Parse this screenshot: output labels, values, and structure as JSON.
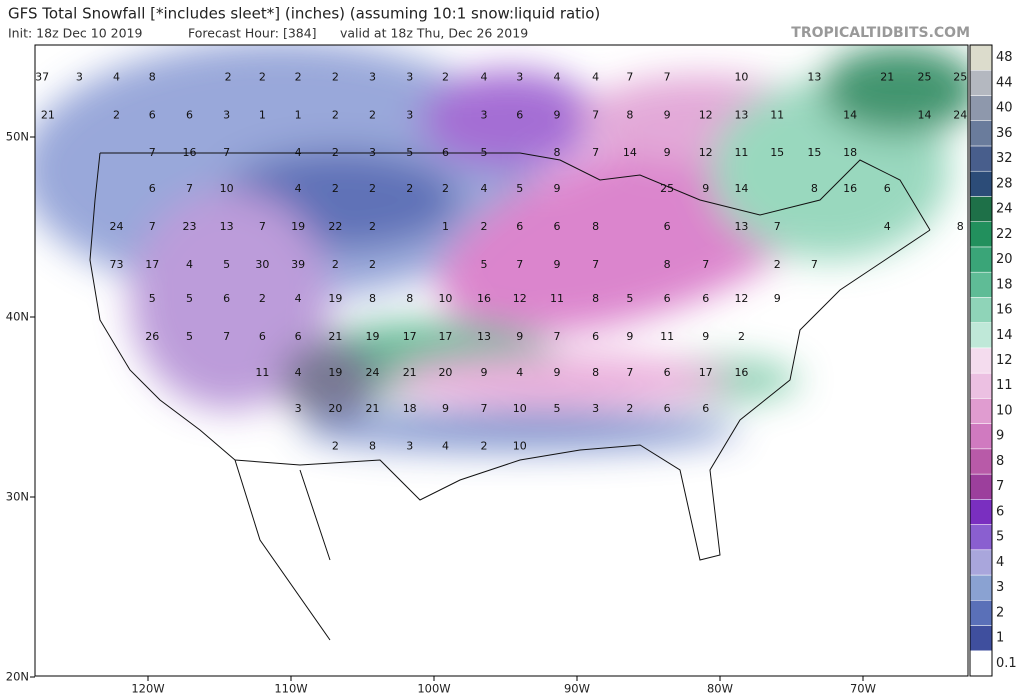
{
  "header": {
    "title": "GFS Total Snowfall [*includes sleet*] (inches) (assuming 10:1 snow:liquid ratio)",
    "init": "Init: 18z Dec 10 2019",
    "forecast_hour": "Forecast Hour: [384]",
    "valid": "valid at 18z Thu, Dec 26 2019",
    "watermark": "TROPICALTIDBITS.COM"
  },
  "map": {
    "lon_ticks": [
      {
        "value": -120,
        "label": "120W"
      },
      {
        "value": -110,
        "label": "110W"
      },
      {
        "value": -100,
        "label": "100W"
      },
      {
        "value": -90,
        "label": "90W"
      },
      {
        "value": -80,
        "label": "80W"
      },
      {
        "value": -70,
        "label": "70W"
      }
    ],
    "lat_ticks": [
      {
        "value": 50,
        "label": "50N"
      },
      {
        "value": 40,
        "label": "40N"
      },
      {
        "value": 30,
        "label": "30N"
      },
      {
        "value": 20,
        "label": "20N"
      }
    ],
    "value_rows": [
      {
        "lat": 53.3,
        "points": [
          [
            37,
            -127.4
          ],
          [
            3,
            -124.8
          ],
          [
            4,
            -122.2
          ],
          [
            8,
            -119.7
          ],
          [
            2,
            -114.4
          ],
          [
            2,
            -112.0
          ],
          [
            2,
            -109.5
          ],
          [
            2,
            -106.9
          ],
          [
            3,
            -104.3
          ],
          [
            3,
            -101.7
          ],
          [
            2,
            -99.2
          ],
          [
            4,
            -96.5
          ],
          [
            3,
            -94.0
          ],
          [
            4,
            -91.4
          ],
          [
            4,
            -88.7
          ],
          [
            7,
            -86.3
          ],
          [
            7,
            -83.7
          ],
          [
            10,
            -78.5
          ],
          [
            13,
            -73.4
          ],
          [
            21,
            -68.3
          ],
          [
            25,
            -65.7
          ],
          [
            25,
            -63.2
          ]
        ]
      },
      {
        "lat": 51.2,
        "points": [
          [
            21,
            -127.0
          ],
          [
            2,
            -122.2
          ],
          [
            6,
            -119.7
          ],
          [
            6,
            -117.1
          ],
          [
            3,
            -114.5
          ],
          [
            1,
            -112.0
          ],
          [
            1,
            -109.5
          ],
          [
            2,
            -106.9
          ],
          [
            2,
            -104.3
          ],
          [
            3,
            -101.7
          ],
          [
            3,
            -96.5
          ],
          [
            6,
            -94.0
          ],
          [
            9,
            -91.4
          ],
          [
            7,
            -88.7
          ],
          [
            8,
            -86.3
          ],
          [
            9,
            -83.7
          ],
          [
            12,
            -81.0
          ],
          [
            13,
            -78.5
          ],
          [
            11,
            -76.0
          ],
          [
            14,
            -70.9
          ],
          [
            14,
            -65.7
          ],
          [
            24,
            -63.2
          ]
        ]
      },
      {
        "lat": 49.1,
        "points": [
          [
            7,
            -119.7
          ],
          [
            16,
            -117.1
          ],
          [
            7,
            -114.5
          ],
          [
            4,
            -109.5
          ],
          [
            2,
            -106.9
          ],
          [
            3,
            -104.3
          ],
          [
            5,
            -101.7
          ],
          [
            6,
            -99.2
          ],
          [
            5,
            -96.5
          ],
          [
            8,
            -91.4
          ],
          [
            7,
            -88.7
          ],
          [
            14,
            -86.3
          ],
          [
            9,
            -83.7
          ],
          [
            12,
            -81.0
          ],
          [
            11,
            -78.5
          ],
          [
            15,
            -76.0
          ],
          [
            15,
            -73.4
          ],
          [
            18,
            -70.9
          ]
        ]
      },
      {
        "lat": 47.1,
        "points": [
          [
            6,
            -119.7
          ],
          [
            7,
            -117.1
          ],
          [
            10,
            -114.5
          ],
          [
            4,
            -109.5
          ],
          [
            2,
            -106.9
          ],
          [
            2,
            -104.3
          ],
          [
            2,
            -101.7
          ],
          [
            2,
            -99.2
          ],
          [
            4,
            -96.5
          ],
          [
            5,
            -94.0
          ],
          [
            9,
            -91.4
          ],
          [
            25,
            -83.7
          ],
          [
            9,
            -81.0
          ],
          [
            14,
            -78.5
          ],
          [
            8,
            -73.4
          ],
          [
            16,
            -70.9
          ],
          [
            6,
            -68.3
          ]
        ]
      },
      {
        "lat": 45.0,
        "points": [
          [
            24,
            -122.2
          ],
          [
            7,
            -119.7
          ],
          [
            23,
            -117.1
          ],
          [
            13,
            -114.5
          ],
          [
            7,
            -112.0
          ],
          [
            19,
            -109.5
          ],
          [
            22,
            -106.9
          ],
          [
            2,
            -104.3
          ],
          [
            1,
            -99.2
          ],
          [
            2,
            -96.5
          ],
          [
            6,
            -94.0
          ],
          [
            6,
            -91.4
          ],
          [
            8,
            -88.7
          ],
          [
            6,
            -83.7
          ],
          [
            13,
            -78.5
          ],
          [
            7,
            -76.0
          ],
          [
            4,
            -68.3
          ],
          [
            8,
            -63.2
          ]
        ]
      },
      {
        "lat": 42.9,
        "points": [
          [
            73,
            -122.2
          ],
          [
            17,
            -119.7
          ],
          [
            4,
            -117.1
          ],
          [
            5,
            -114.5
          ],
          [
            30,
            -112.0
          ],
          [
            39,
            -109.5
          ],
          [
            2,
            -106.9
          ],
          [
            2,
            -104.3
          ],
          [
            5,
            -96.5
          ],
          [
            7,
            -94.0
          ],
          [
            9,
            -91.4
          ],
          [
            7,
            -88.7
          ],
          [
            8,
            -83.7
          ],
          [
            7,
            -81.0
          ],
          [
            2,
            -76.0
          ],
          [
            7,
            -73.4
          ]
        ]
      },
      {
        "lat": 41.0,
        "points": [
          [
            5,
            -119.7
          ],
          [
            5,
            -117.1
          ],
          [
            6,
            -114.5
          ],
          [
            2,
            -112.0
          ],
          [
            4,
            -109.5
          ],
          [
            19,
            -106.9
          ],
          [
            8,
            -104.3
          ],
          [
            8,
            -101.7
          ],
          [
            10,
            -99.2
          ],
          [
            16,
            -96.5
          ],
          [
            12,
            -94.0
          ],
          [
            11,
            -91.4
          ],
          [
            8,
            -88.7
          ],
          [
            5,
            -86.3
          ],
          [
            6,
            -83.7
          ],
          [
            6,
            -81.0
          ],
          [
            12,
            -78.5
          ],
          [
            9,
            -76.0
          ]
        ]
      },
      {
        "lat": 38.9,
        "points": [
          [
            26,
            -119.7
          ],
          [
            5,
            -117.1
          ],
          [
            7,
            -114.5
          ],
          [
            6,
            -112.0
          ],
          [
            6,
            -109.5
          ],
          [
            21,
            -106.9
          ],
          [
            19,
            -104.3
          ],
          [
            17,
            -101.7
          ],
          [
            17,
            -99.2
          ],
          [
            13,
            -96.5
          ],
          [
            9,
            -94.0
          ],
          [
            7,
            -91.4
          ],
          [
            6,
            -88.7
          ],
          [
            9,
            -86.3
          ],
          [
            11,
            -83.7
          ],
          [
            9,
            -81.0
          ],
          [
            2,
            -78.5
          ]
        ]
      },
      {
        "lat": 36.9,
        "points": [
          [
            11,
            -112.0
          ],
          [
            4,
            -109.5
          ],
          [
            19,
            -106.9
          ],
          [
            24,
            -104.3
          ],
          [
            21,
            -101.7
          ],
          [
            20,
            -99.2
          ],
          [
            9,
            -96.5
          ],
          [
            4,
            -94.0
          ],
          [
            9,
            -91.4
          ],
          [
            8,
            -88.7
          ],
          [
            7,
            -86.3
          ],
          [
            6,
            -83.7
          ],
          [
            17,
            -81.0
          ],
          [
            16,
            -78.5
          ]
        ]
      },
      {
        "lat": 34.9,
        "points": [
          [
            3,
            -109.5
          ],
          [
            20,
            -106.9
          ],
          [
            21,
            -104.3
          ],
          [
            18,
            -101.7
          ],
          [
            9,
            -99.2
          ],
          [
            7,
            -96.5
          ],
          [
            10,
            -94.0
          ],
          [
            5,
            -91.4
          ],
          [
            3,
            -88.7
          ],
          [
            2,
            -86.3
          ],
          [
            6,
            -83.7
          ],
          [
            6,
            -81.0
          ]
        ]
      },
      {
        "lat": 32.8,
        "points": [
          [
            2,
            -106.9
          ],
          [
            8,
            -104.3
          ],
          [
            3,
            -101.7
          ],
          [
            4,
            -99.2
          ],
          [
            2,
            -96.5
          ],
          [
            10,
            -94.0
          ]
        ]
      }
    ]
  },
  "colorbar": {
    "levels": [
      0.1,
      1,
      2,
      3,
      4,
      5,
      6,
      7,
      8,
      9,
      10,
      11,
      12,
      14,
      16,
      18,
      20,
      22,
      24,
      28,
      32,
      36,
      40,
      44,
      48
    ],
    "colors": [
      "#ffffff",
      "#3f4f9e",
      "#5a70b8",
      "#8aa2d2",
      "#a9a6dc",
      "#8a5fd0",
      "#7a2fc0",
      "#9c3f9c",
      "#b85aa8",
      "#d07ac0",
      "#e09cd0",
      "#ecc0e2",
      "#f4dcee",
      "#bfe8d8",
      "#8fd4b8",
      "#5fbc96",
      "#3aa578",
      "#22905d",
      "#1e7048",
      "#2c4c78",
      "#485e8c",
      "#6a7c9c",
      "#8e98ac",
      "#b4b8c0",
      "#dcdccc"
    ]
  }
}
